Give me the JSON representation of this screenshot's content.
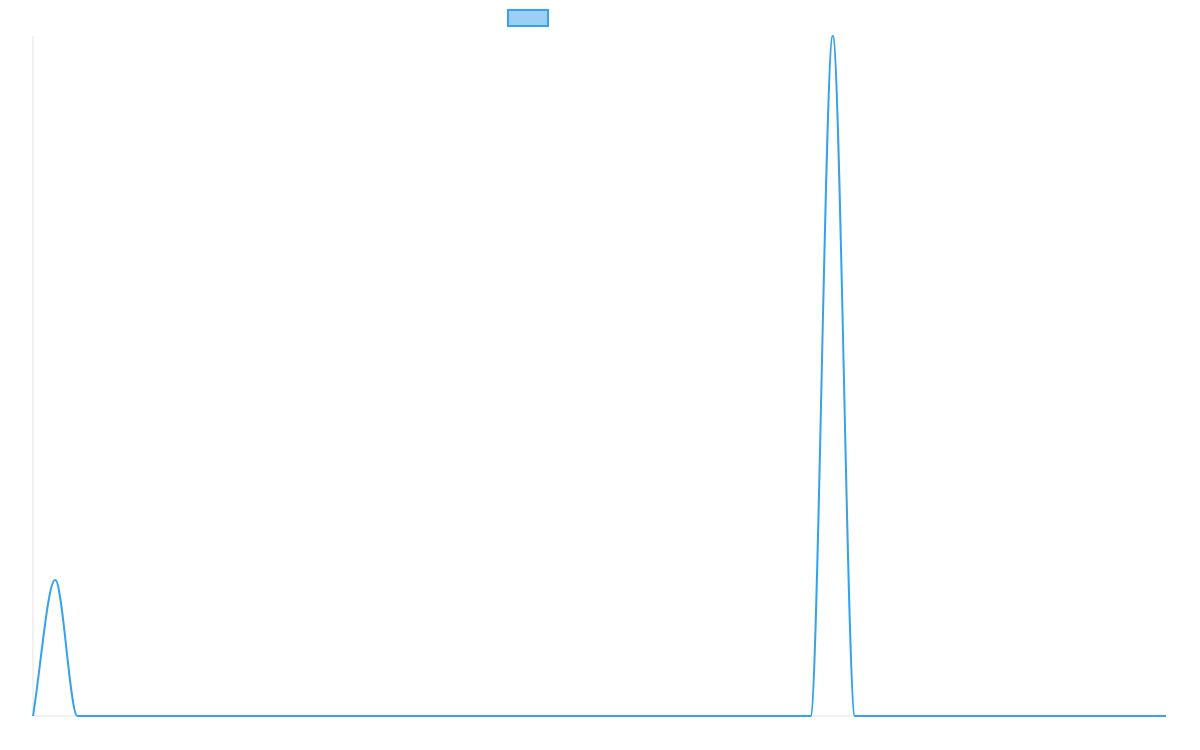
{
  "chart_data": {
    "type": "line",
    "title": "",
    "xlabel": "",
    "ylabel": "",
    "x": [
      0,
      1,
      2,
      3,
      4,
      5,
      6,
      7,
      8,
      9,
      10,
      11,
      12,
      13,
      14,
      15,
      16,
      17,
      18,
      19,
      20,
      21,
      22,
      23,
      24,
      25,
      26,
      27,
      28,
      29,
      30,
      31,
      32,
      33,
      34,
      35,
      36,
      37,
      38,
      39,
      40,
      41,
      42,
      43,
      44,
      45,
      46,
      47,
      48,
      49,
      50,
      51
    ],
    "xlim": [
      0,
      51
    ],
    "ylim": [
      0,
      100
    ],
    "grid": false,
    "legend": "top-center",
    "series": [
      {
        "name": "",
        "color": "#36a2eb",
        "fill": "#9ad0f5",
        "values": [
          0,
          20,
          0,
          0,
          0,
          0,
          0,
          0,
          0,
          0,
          0,
          0,
          0,
          0,
          0,
          0,
          0,
          0,
          0,
          0,
          0,
          0,
          0,
          0,
          0,
          0,
          0,
          0,
          0,
          0,
          0,
          0,
          0,
          0,
          0,
          0,
          100,
          0,
          0,
          0,
          0,
          0,
          0,
          0,
          0,
          0,
          0,
          0,
          0,
          0,
          0,
          0
        ]
      }
    ]
  }
}
